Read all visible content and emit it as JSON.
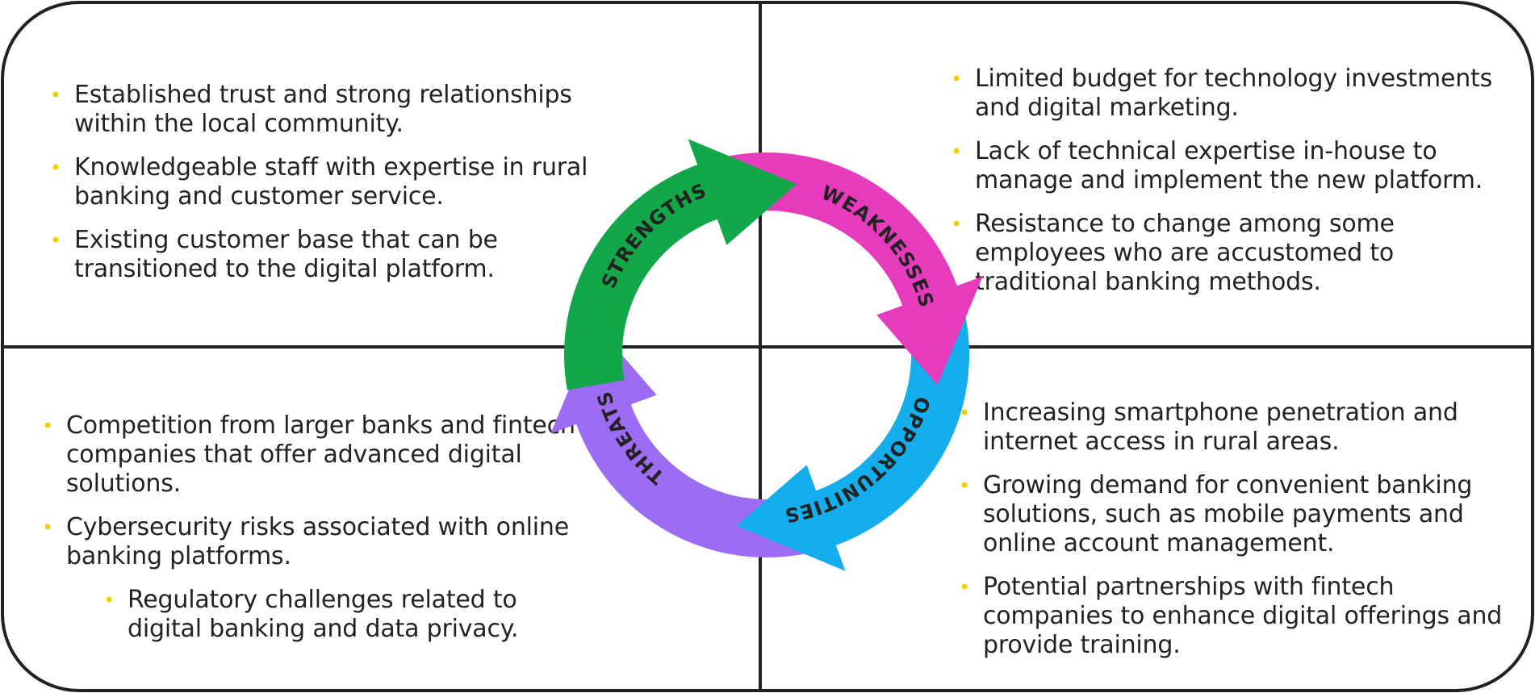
{
  "colors": {
    "strengths": "#12a84a",
    "weaknesses": "#e63bbd",
    "opportunities": "#13aeeb",
    "threats": "#9c6cf4",
    "bullet": "#f2cf00",
    "border": "#222222"
  },
  "cycle": {
    "strengths_label": "STRENGTHS",
    "weaknesses_label": "WEAKNESSES",
    "opportunities_label": "OPPORTUNITIES",
    "threats_label": "THREATS"
  },
  "strengths": {
    "items": [
      "Established trust and strong relationships within the local community.",
      "Knowledgeable staff with expertise in rural banking and customer service.",
      "Existing customer base that can be transitioned to the digital platform."
    ]
  },
  "weaknesses": {
    "items": [
      "Limited budget for technology investments and digital marketing.",
      "Lack of technical expertise in-house to manage and implement the new platform.",
      "Resistance to change among some employees who are accustomed to traditional banking methods."
    ]
  },
  "threats": {
    "items": [
      "Competition from larger banks and fintech companies that offer advanced digital solutions.",
      "Cybersecurity risks associated with online banking platforms.",
      "Regulatory challenges related to digital banking and data privacy."
    ]
  },
  "opportunities": {
    "items": [
      "Increasing smartphone penetration and internet access in rural areas.",
      "Growing demand for convenient banking solutions, such as mobile payments and online account management.",
      "Potential partnerships with fintech companies to enhance digital offerings and provide training."
    ]
  }
}
